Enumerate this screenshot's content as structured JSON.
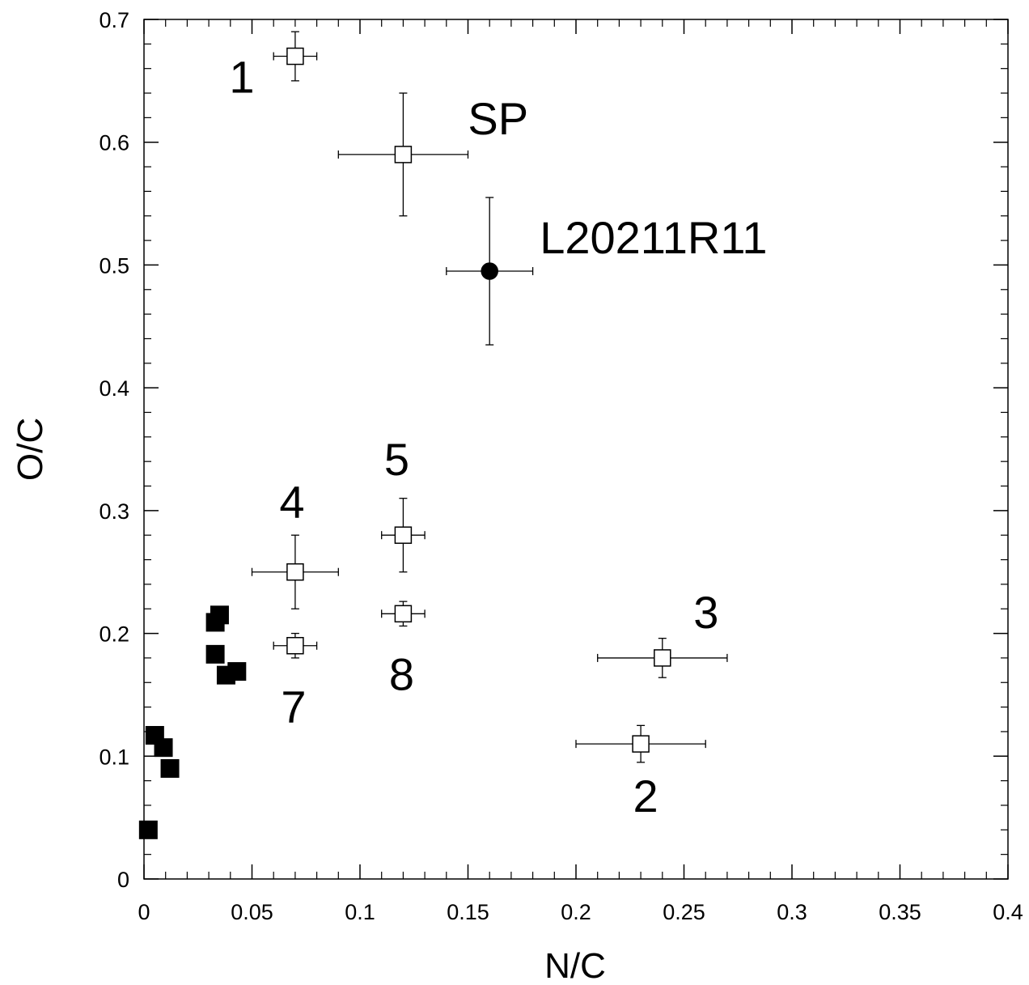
{
  "chart_data": {
    "type": "scatter",
    "xlabel": "N/C",
    "ylabel": "O/C",
    "xlim": [
      0,
      0.4
    ],
    "ylim": [
      0,
      0.7
    ],
    "x_ticks": [
      "0",
      "0.05",
      "0.1",
      "0.15",
      "0.2",
      "0.25",
      "0.3",
      "0.35",
      "0.4"
    ],
    "y_ticks": [
      "0",
      "0.1",
      "0.2",
      "0.3",
      "0.4",
      "0.5",
      "0.6",
      "0.7"
    ],
    "grid": false,
    "colors": {
      "axis": "#000000",
      "marker_fill": "#000000",
      "open_fill": "#ffffff"
    },
    "labeled_points": [
      {
        "label": "1",
        "x": 0.07,
        "y": 0.67,
        "xerr": 0.01,
        "yerr": 0.02,
        "marker": "open-square"
      },
      {
        "label": "SP",
        "x": 0.12,
        "y": 0.59,
        "xerr": 0.03,
        "yerr": 0.05,
        "marker": "open-square"
      },
      {
        "label": "L20211R11",
        "x": 0.16,
        "y": 0.495,
        "xerr": 0.02,
        "yerr": 0.06,
        "marker": "filled-circle"
      },
      {
        "label": "5",
        "x": 0.12,
        "y": 0.28,
        "xerr": 0.01,
        "yerr": 0.03,
        "marker": "open-square"
      },
      {
        "label": "4",
        "x": 0.07,
        "y": 0.25,
        "xerr": 0.02,
        "yerr": 0.03,
        "marker": "open-square"
      },
      {
        "label": "8",
        "x": 0.12,
        "y": 0.216,
        "xerr": 0.01,
        "yerr": 0.01,
        "marker": "open-square"
      },
      {
        "label": "7",
        "x": 0.07,
        "y": 0.19,
        "xerr": 0.01,
        "yerr": 0.01,
        "marker": "open-square"
      },
      {
        "label": "3",
        "x": 0.24,
        "y": 0.18,
        "xerr": 0.03,
        "yerr": 0.016,
        "marker": "open-square"
      },
      {
        "label": "2",
        "x": 0.23,
        "y": 0.11,
        "xerr": 0.03,
        "yerr": 0.015,
        "marker": "open-square"
      }
    ],
    "filled_square_points": [
      {
        "x": 0.035,
        "y": 0.215
      },
      {
        "x": 0.033,
        "y": 0.209
      },
      {
        "x": 0.033,
        "y": 0.183
      },
      {
        "x": 0.038,
        "y": 0.166
      },
      {
        "x": 0.043,
        "y": 0.169
      },
      {
        "x": 0.005,
        "y": 0.117
      },
      {
        "x": 0.009,
        "y": 0.107
      },
      {
        "x": 0.012,
        "y": 0.09
      },
      {
        "x": 0.002,
        "y": 0.04
      }
    ]
  }
}
